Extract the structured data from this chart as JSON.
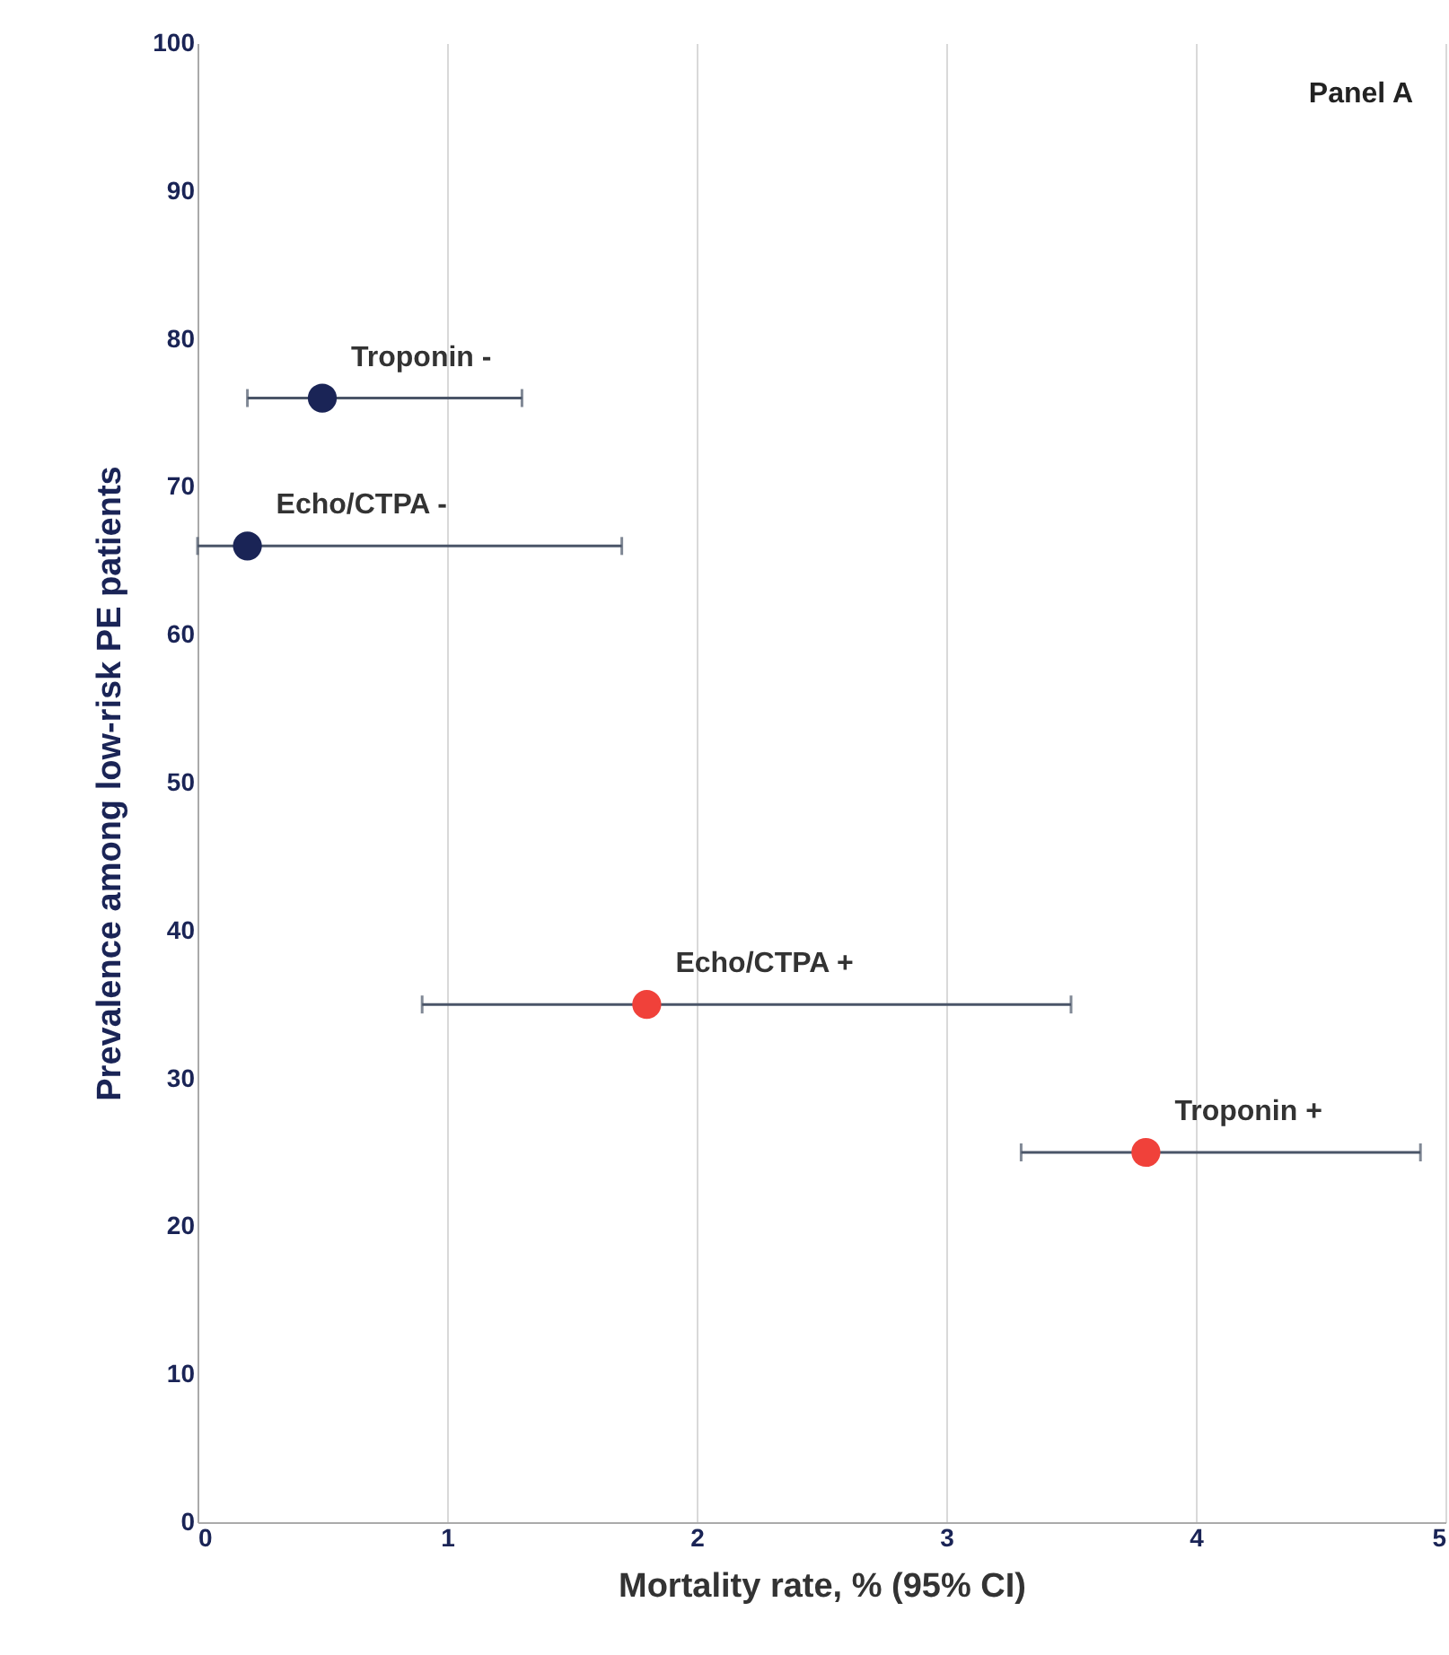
{
  "chart_data": {
    "type": "scatter",
    "xlabel": "Mortality rate, % (95% CI)",
    "ylabel": "Prevalence among low-risk PE patients",
    "xlim": [
      0,
      5
    ],
    "ylim": [
      0,
      100
    ],
    "xticks": [
      0,
      1,
      2,
      3,
      4,
      5
    ],
    "yticks": [
      0,
      10,
      20,
      30,
      40,
      50,
      60,
      70,
      80,
      90,
      100
    ],
    "grid": "x",
    "marker": "circle",
    "annotations": [
      "Panel A"
    ],
    "series": [
      {
        "name": "Troponin -",
        "color": "#1a2456",
        "x": [
          0.5
        ],
        "values": [
          76
        ],
        "xerrors": [
          [
            0.2,
            1.3
          ]
        ]
      },
      {
        "name": "Echo/CTPA -",
        "color": "#1a2456",
        "x": [
          0.2
        ],
        "values": [
          66
        ],
        "xerrors": [
          [
            0,
            1.7
          ]
        ]
      },
      {
        "name": "Echo/CTPA +",
        "color": "#f0413a",
        "x": [
          1.8
        ],
        "values": [
          35
        ],
        "xerrors": [
          [
            0.9,
            3.5
          ]
        ]
      },
      {
        "name": "Troponin +",
        "color": "#f0413a",
        "x": [
          3.8
        ],
        "values": [
          25
        ],
        "xerrors": [
          [
            3.3,
            4.9
          ]
        ]
      }
    ]
  }
}
